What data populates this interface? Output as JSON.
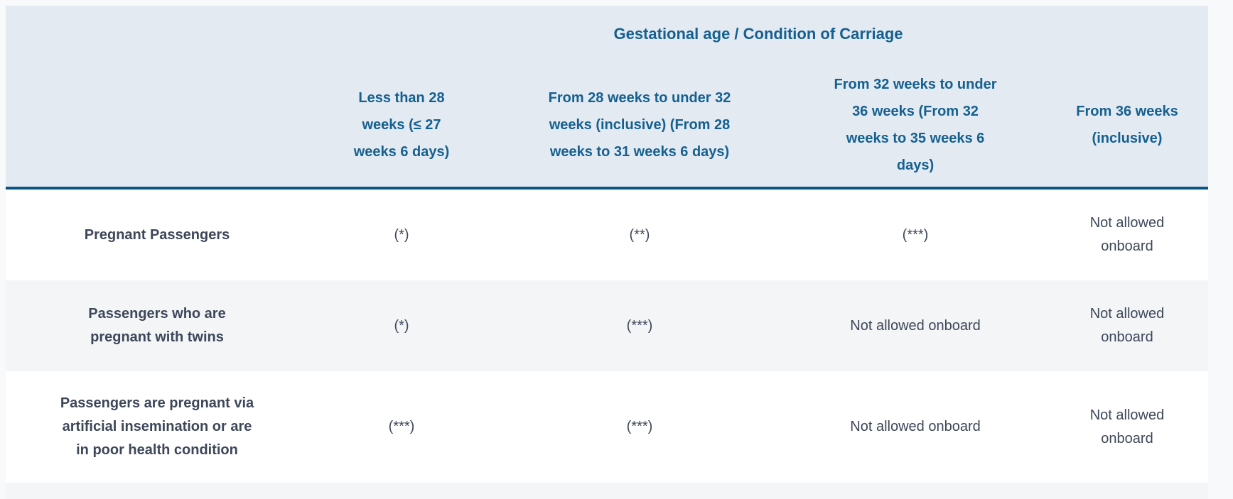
{
  "table": {
    "header": {
      "title": "Gestational age / Condition of Carriage",
      "columns": [
        "Less than 28 weeks (≤ 27 weeks 6 days)",
        "From 28 weeks to under 32 weeks (inclusive) (From 28 weeks to 31 weeks 6 days)",
        "From 32 weeks to under 36 weeks (From 32 weeks to 35 weeks 6 days)",
        "From 36 weeks (inclusive)"
      ]
    },
    "rows": [
      {
        "label": "Pregnant Passengers",
        "cells": [
          "(*)",
          "(**)",
          "(***)",
          "Not allowed onboard"
        ]
      },
      {
        "label": "Passengers who are pregnant with twins",
        "cells": [
          "(*)",
          "(***)",
          "Not allowed onboard",
          "Not allowed onboard"
        ]
      },
      {
        "label": "Passengers are pregnant via artificial insemination or are in poor health condition",
        "cells": [
          "(***)",
          "(***)",
          "Not allowed onboard",
          "Not allowed onboard"
        ]
      }
    ],
    "colors": {
      "header_bg": "#e3eaf2",
      "header_text": "#15608f",
      "divider": "#0b5586",
      "row_alt_bg": "#f3f5f7",
      "body_text": "#3d4759",
      "page_bg": "#f8f9fb"
    }
  }
}
